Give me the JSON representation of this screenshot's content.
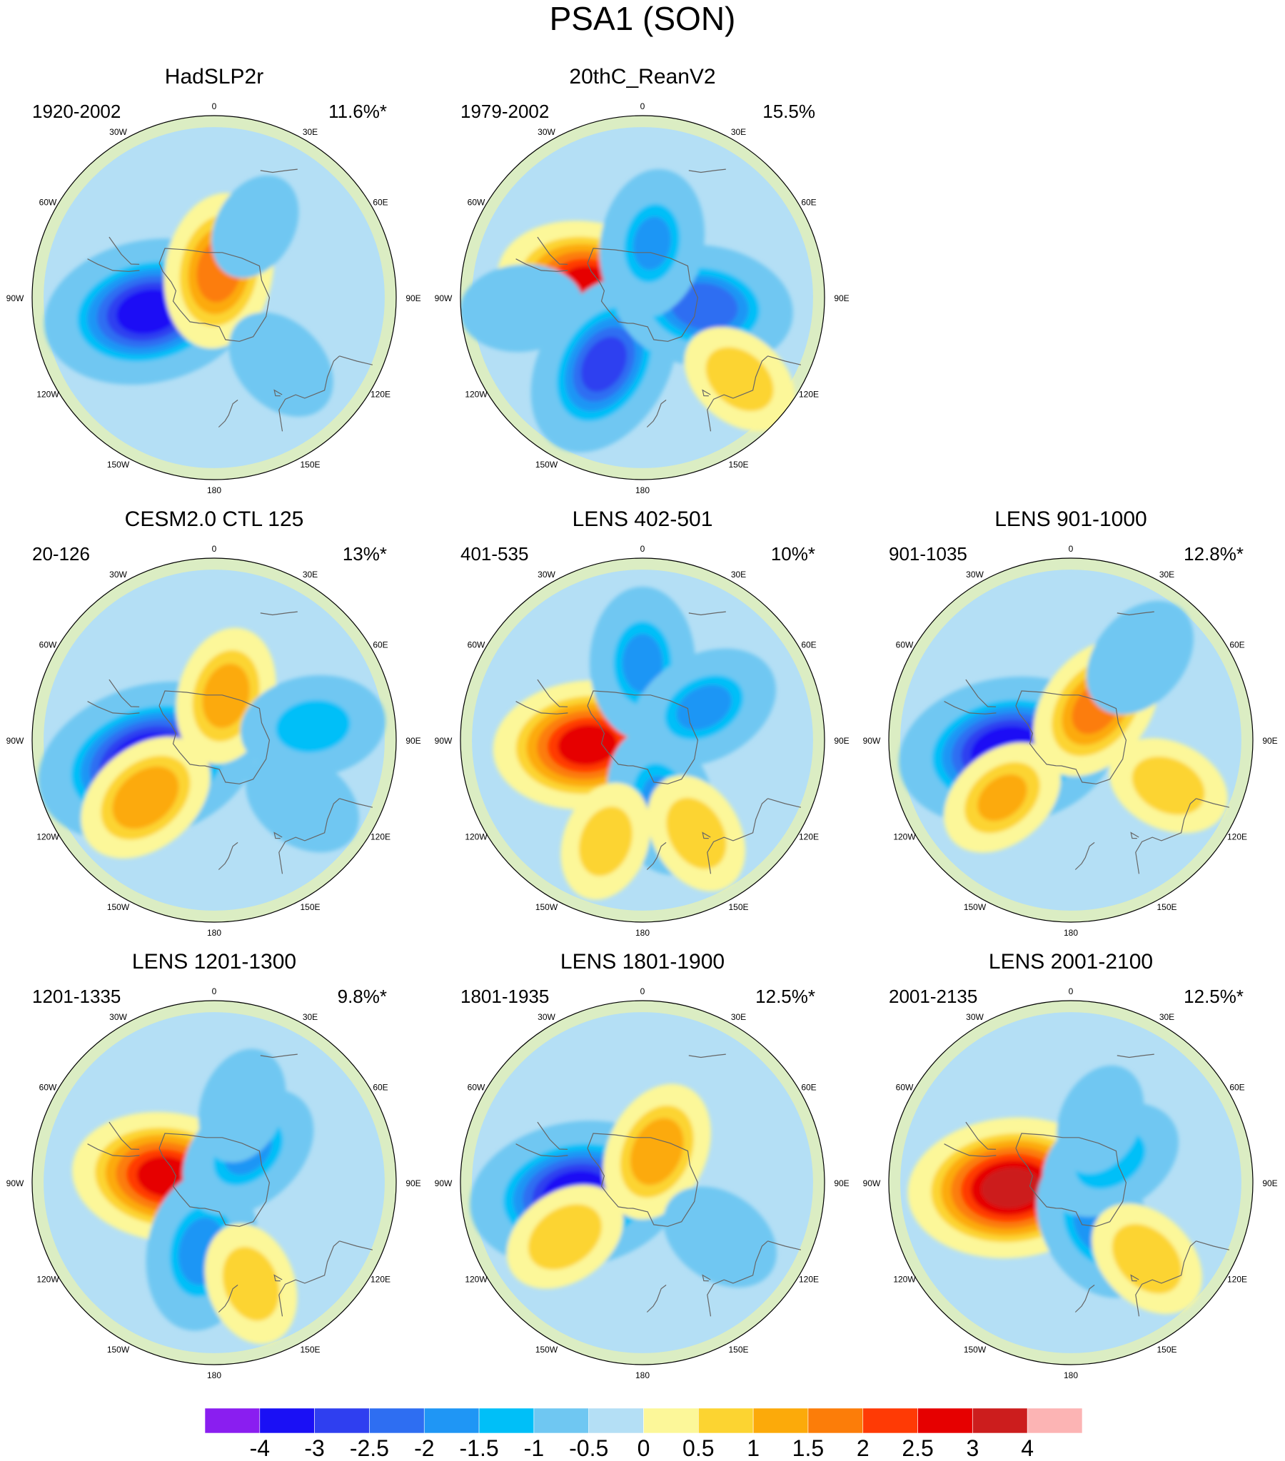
{
  "title": "PSA1 (SON)",
  "chart_data": {
    "type": "heatmap",
    "title": "PSA1 (SON)",
    "projection": "south polar stereographic",
    "longitude_labels": [
      "0",
      "30E",
      "60E",
      "90E",
      "120E",
      "150E",
      "180",
      "150W",
      "120W",
      "90W",
      "60W",
      "30W"
    ],
    "colorbar": {
      "tick_labels": [
        "-4",
        "-3",
        "-2.5",
        "-2",
        "-1.5",
        "-1",
        "-0.5",
        "0",
        "0.5",
        "1",
        "1.5",
        "2",
        "2.5",
        "3",
        "4"
      ],
      "colors": [
        "#8a1ef0",
        "#1a10f5",
        "#2f3ff0",
        "#2e6ef2",
        "#1f96f5",
        "#00bff8",
        "#6fc7f2",
        "#b4dff5",
        "#fcf799",
        "#fcd431",
        "#fcaa0a",
        "#fc7d09",
        "#ff3a05",
        "#e60000",
        "#cc1d1d",
        "#fcb4b4"
      ]
    },
    "panels": [
      {
        "name": "HadSLP2r",
        "period": "1920-2002",
        "variance": "11.6%*",
        "blobs": [
          {
            "lat": -61,
            "lon": -102,
            "v": -3.2
          },
          {
            "lat": -78,
            "lon": 10,
            "v": 1.7
          },
          {
            "lat": -50,
            "lon": 135,
            "v": -0.7
          },
          {
            "lat": -55,
            "lon": 30,
            "v": -0.4
          }
        ]
      },
      {
        "name": "20thC_ReanV2",
        "period": "1979-2002",
        "variance": "15.5%",
        "blobs": [
          {
            "lat": -67,
            "lon": -78,
            "v": 2.6
          },
          {
            "lat": -57,
            "lon": -150,
            "v": -2.6
          },
          {
            "lat": -63,
            "lon": 98,
            "v": -2.3
          },
          {
            "lat": -66,
            "lon": 10,
            "v": -1.5
          },
          {
            "lat": -38,
            "lon": 130,
            "v": 0.8
          },
          {
            "lat": -40,
            "lon": -95,
            "v": -0.8
          }
        ]
      },
      {
        "name": "CESM2.0 CTL 125",
        "period": "20-126",
        "variance": "13%*",
        "blobs": [
          {
            "lat": -60,
            "lon": -108,
            "v": -3.6
          },
          {
            "lat": -52,
            "lon": -130,
            "v": 1.4
          },
          {
            "lat": -70,
            "lon": 15,
            "v": 1.2
          },
          {
            "lat": -48,
            "lon": 82,
            "v": -1.4
          },
          {
            "lat": -45,
            "lon": 125,
            "v": -0.8
          }
        ]
      },
      {
        "name": "LENS 402-501",
        "period": "401-535",
        "variance": "10%*",
        "blobs": [
          {
            "lat": -66,
            "lon": -95,
            "v": 2.6
          },
          {
            "lat": -57,
            "lon": 0,
            "v": -1.6
          },
          {
            "lat": -60,
            "lon": 62,
            "v": -1.6
          },
          {
            "lat": -62,
            "lon": 163,
            "v": -1.5
          },
          {
            "lat": -45,
            "lon": 150,
            "v": 0.8
          },
          {
            "lat": -45,
            "lon": -160,
            "v": 0.7
          }
        ]
      },
      {
        "name": "LENS 901-1000",
        "period": "901-1035",
        "variance": "12.8%*",
        "blobs": [
          {
            "lat": -62,
            "lon": -100,
            "v": -3.4
          },
          {
            "lat": -72,
            "lon": 38,
            "v": 1.6
          },
          {
            "lat": -52,
            "lon": -130,
            "v": 1.0
          },
          {
            "lat": -45,
            "lon": 40,
            "v": -0.9
          },
          {
            "lat": -45,
            "lon": 115,
            "v": 0.8
          }
        ]
      },
      {
        "name": "LENS 1201-1300",
        "period": "1201-1335",
        "variance": "9.8%*",
        "blobs": [
          {
            "lat": -69,
            "lon": -83,
            "v": 2.6
          },
          {
            "lat": -60,
            "lon": -170,
            "v": -1.8
          },
          {
            "lat": -70,
            "lon": 48,
            "v": -1.5
          },
          {
            "lat": -55,
            "lon": 20,
            "v": -0.6
          },
          {
            "lat": -45,
            "lon": 160,
            "v": 0.8
          }
        ]
      },
      {
        "name": "LENS 1801-1900",
        "period": "1801-1935",
        "variance": "12.5%*",
        "blobs": [
          {
            "lat": -61,
            "lon": -100,
            "v": -3.3
          },
          {
            "lat": -75,
            "lon": 25,
            "v": 1.3
          },
          {
            "lat": -50,
            "lon": -125,
            "v": 0.9
          },
          {
            "lat": -50,
            "lon": 125,
            "v": -0.8
          }
        ]
      },
      {
        "name": "LENS 2001-2100",
        "period": "2001-2135",
        "variance": "12.5%*",
        "blobs": [
          {
            "lat": -64,
            "lon": -95,
            "v": 3.1
          },
          {
            "lat": -68,
            "lon": 150,
            "v": -1.6
          },
          {
            "lat": -70,
            "lon": 60,
            "v": -1.4
          },
          {
            "lat": -45,
            "lon": 135,
            "v": 0.9
          },
          {
            "lat": -60,
            "lon": 25,
            "v": -0.5
          }
        ]
      }
    ]
  }
}
